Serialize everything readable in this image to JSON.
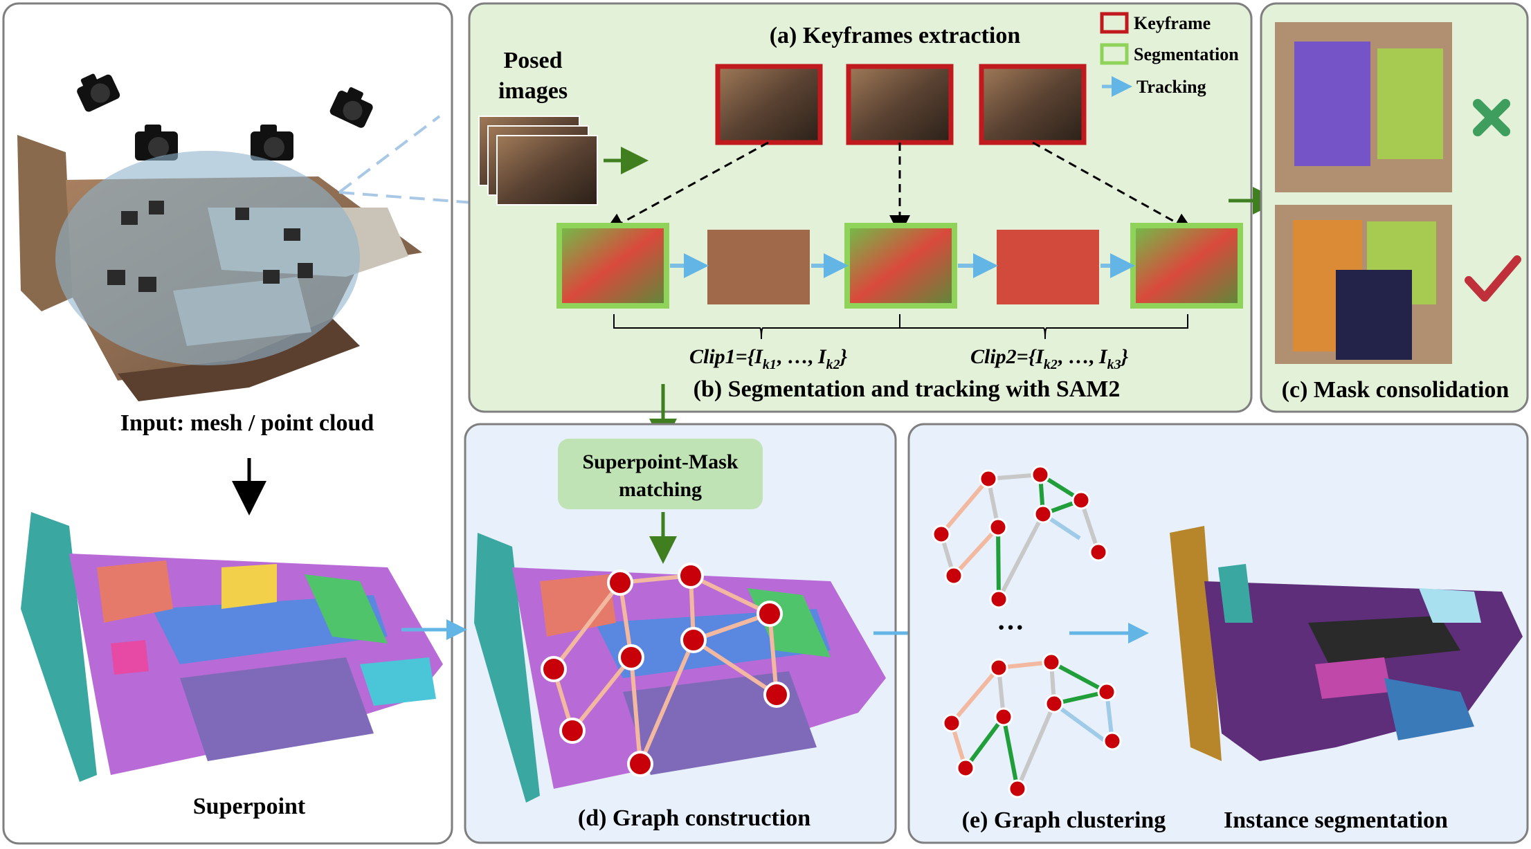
{
  "panels": {
    "input": {
      "title": "Input: mesh / point cloud",
      "bottom_label": "Superpoint"
    },
    "keyframes": {
      "title": "(a) Keyframes extraction",
      "posed_images_line1": "Posed",
      "posed_images_line2": "images",
      "legend": [
        {
          "label": "Keyframe",
          "color": "#c0191e",
          "kind": "box"
        },
        {
          "label": "Segmentation",
          "color": "#8fd35a",
          "kind": "box"
        },
        {
          "label": "Tracking",
          "color": "#7bbfe6",
          "kind": "arrow"
        }
      ],
      "clip1_prefix": "Clip1",
      "clip1_k_start": "k1",
      "clip1_k_end": "k2",
      "clip2_prefix": "Clip2",
      "clip2_k_start": "k2",
      "clip2_k_end": "k3",
      "ellipsis": "…",
      "subtitle": "(b) Segmentation and tracking with SAM2"
    },
    "consolidation": {
      "title": "(c) Mask consolidation"
    },
    "graph_construction": {
      "matching_line1": "Superpoint-Mask",
      "matching_line2": "matching",
      "title": "(d) Graph construction"
    },
    "graph_clustering": {
      "title": "(e) Graph clustering",
      "ellipsis": "···",
      "result_title": "Instance segmentation"
    }
  },
  "colors": {
    "panel_border": "#7f7f7f",
    "green_panel_bg": "#e3f1d8",
    "blue_panel_bg": "#e8f0fb",
    "dark_green_arrow": "#3f7f1f",
    "light_blue_arrow": "#62b5e5",
    "node_red": "#c8000a",
    "edge_green": "#1f9e3a",
    "edge_salmon": "#f2b8a0",
    "edge_gray": "#c8c8c8",
    "edge_blue": "#9fcbe8",
    "keyframe_red": "#c0191e",
    "segmentation_green": "#8fd35a",
    "matching_box": "#bfe3b4",
    "cross_green": "#3e9e5e",
    "check_red": "#c0303a"
  }
}
